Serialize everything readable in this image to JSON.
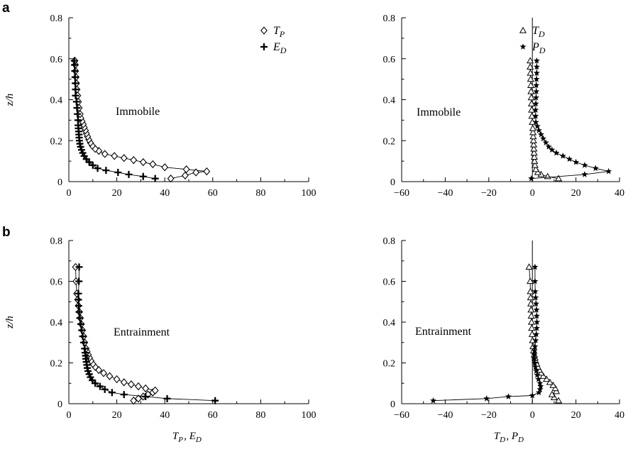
{
  "chart_data": [
    {
      "type": "line",
      "panel": "a",
      "annotation": "Immobile",
      "xlabel": "",
      "ylabel": "z/h",
      "xlim": [
        0,
        100
      ],
      "ylim": [
        0,
        0.8
      ],
      "xticks": [
        "0",
        "20",
        "40",
        "60",
        "80",
        "100"
      ],
      "yticks": [
        "0",
        "0.2",
        "0.4",
        "0.6",
        "0.8"
      ],
      "legend": "top-right",
      "series": [
        {
          "name": "T_P",
          "marker": "diamond",
          "points": [
            [
              42.5,
              0.015
            ],
            [
              48.5,
              0.03
            ],
            [
              53,
              0.045
            ],
            [
              57.5,
              0.05
            ],
            [
              49,
              0.06
            ],
            [
              40,
              0.07
            ],
            [
              35,
              0.085
            ],
            [
              31,
              0.095
            ],
            [
              27,
              0.105
            ],
            [
              23,
              0.115
            ],
            [
              19,
              0.125
            ],
            [
              15,
              0.135
            ],
            [
              12.5,
              0.15
            ],
            [
              11,
              0.16
            ],
            [
              9.8,
              0.175
            ],
            [
              9,
              0.19
            ],
            [
              8.3,
              0.205
            ],
            [
              7.8,
              0.22
            ],
            [
              7.3,
              0.235
            ],
            [
              6.9,
              0.25
            ],
            [
              6.4,
              0.265
            ],
            [
              6,
              0.28
            ],
            [
              5.5,
              0.295
            ],
            [
              5,
              0.31
            ],
            [
              4.7,
              0.33
            ],
            [
              4.3,
              0.36
            ],
            [
              4,
              0.39
            ],
            [
              3.7,
              0.42
            ],
            [
              3.4,
              0.45
            ],
            [
              3.2,
              0.48
            ],
            [
              3,
              0.51
            ],
            [
              2.8,
              0.54
            ],
            [
              2.7,
              0.57
            ],
            [
              2.5,
              0.59
            ]
          ]
        },
        {
          "name": "E_D",
          "marker": "plus",
          "points": [
            [
              36,
              0.015
            ],
            [
              31,
              0.025
            ],
            [
              25,
              0.035
            ],
            [
              20.5,
              0.045
            ],
            [
              15.5,
              0.055
            ],
            [
              12,
              0.065
            ],
            [
              10,
              0.08
            ],
            [
              8.5,
              0.095
            ],
            [
              7.3,
              0.11
            ],
            [
              6.4,
              0.125
            ],
            [
              5.8,
              0.14
            ],
            [
              5.3,
              0.155
            ],
            [
              4.9,
              0.17
            ],
            [
              4.6,
              0.185
            ],
            [
              4.4,
              0.2
            ],
            [
              4.3,
              0.215
            ],
            [
              4.2,
              0.23
            ],
            [
              4.1,
              0.245
            ],
            [
              4,
              0.26
            ],
            [
              3.9,
              0.275
            ],
            [
              3.8,
              0.3
            ],
            [
              3.6,
              0.33
            ],
            [
              3.4,
              0.36
            ],
            [
              3.2,
              0.39
            ],
            [
              2.8,
              0.42
            ],
            [
              2.8,
              0.45
            ],
            [
              2.7,
              0.48
            ],
            [
              2.6,
              0.51
            ],
            [
              2.5,
              0.54
            ],
            [
              2.4,
              0.57
            ],
            [
              2.3,
              0.59
            ]
          ]
        }
      ]
    },
    {
      "type": "line",
      "panel": "",
      "annotation": "Immobile",
      "xlabel": "",
      "ylabel": "",
      "xlim": [
        -60,
        40
      ],
      "ylim": [
        0,
        0.8
      ],
      "xticks": [
        "−60",
        "−40",
        "−20",
        "0",
        "20",
        "40"
      ],
      "yticks": [
        "0",
        "0.2",
        "0.4",
        "0.6",
        "0.8"
      ],
      "legend": "top-right",
      "series": [
        {
          "name": "T_D",
          "marker": "triangle",
          "points": [
            [
              12,
              0.015
            ],
            [
              7,
              0.025
            ],
            [
              4,
              0.035
            ],
            [
              2.5,
              0.045
            ],
            [
              1.6,
              0.06
            ],
            [
              1.2,
              0.08
            ],
            [
              1,
              0.1
            ],
            [
              0.9,
              0.12
            ],
            [
              0.8,
              0.14
            ],
            [
              0.7,
              0.16
            ],
            [
              0.6,
              0.18
            ],
            [
              0.5,
              0.2
            ],
            [
              0.4,
              0.22
            ],
            [
              0.3,
              0.24
            ],
            [
              0.2,
              0.26
            ],
            [
              0,
              0.29
            ],
            [
              -0.2,
              0.32
            ],
            [
              -0.3,
              0.35
            ],
            [
              -0.4,
              0.38
            ],
            [
              -0.5,
              0.41
            ],
            [
              -0.6,
              0.44
            ],
            [
              -0.7,
              0.47
            ],
            [
              -0.8,
              0.5
            ],
            [
              -0.9,
              0.53
            ],
            [
              -1,
              0.56
            ],
            [
              -1,
              0.59
            ]
          ]
        },
        {
          "name": "P_D",
          "marker": "star",
          "points": [
            [
              -0.5,
              0.015
            ],
            [
              24,
              0.035
            ],
            [
              35,
              0.05
            ],
            [
              29,
              0.065
            ],
            [
              24,
              0.08
            ],
            [
              20,
              0.095
            ],
            [
              17,
              0.11
            ],
            [
              14,
              0.125
            ],
            [
              11,
              0.14
            ],
            [
              9,
              0.155
            ],
            [
              7.5,
              0.17
            ],
            [
              6.2,
              0.19
            ],
            [
              5,
              0.21
            ],
            [
              4,
              0.23
            ],
            [
              3,
              0.25
            ],
            [
              2.3,
              0.27
            ],
            [
              1.6,
              0.29
            ],
            [
              1.5,
              0.32
            ],
            [
              1.5,
              0.35
            ],
            [
              1.6,
              0.38
            ],
            [
              1.7,
              0.41
            ],
            [
              1.8,
              0.44
            ],
            [
              1.8,
              0.47
            ],
            [
              1.9,
              0.5
            ],
            [
              2,
              0.53
            ],
            [
              2,
              0.56
            ],
            [
              2,
              0.59
            ]
          ]
        }
      ]
    },
    {
      "type": "line",
      "panel": "b",
      "annotation": "Entrainment",
      "xlabel": "T_P, E_D",
      "ylabel": "z/h",
      "xlim": [
        0,
        100
      ],
      "ylim": [
        0,
        0.8
      ],
      "xticks": [
        "0",
        "20",
        "40",
        "60",
        "80",
        "100"
      ],
      "yticks": [
        "0",
        "0.2",
        "0.4",
        "0.6",
        "0.8"
      ],
      "legend": "none",
      "series": [
        {
          "name": "T_P",
          "marker": "diamond",
          "points": [
            [
              27,
              0.015
            ],
            [
              29,
              0.025
            ],
            [
              31,
              0.035
            ],
            [
              33,
              0.045
            ],
            [
              35,
              0.055
            ],
            [
              36,
              0.065
            ],
            [
              32,
              0.075
            ],
            [
              29,
              0.085
            ],
            [
              26,
              0.095
            ],
            [
              23,
              0.105
            ],
            [
              20,
              0.12
            ],
            [
              17,
              0.135
            ],
            [
              14.5,
              0.15
            ],
            [
              12.5,
              0.165
            ],
            [
              11,
              0.18
            ],
            [
              10,
              0.195
            ],
            [
              9.2,
              0.21
            ],
            [
              8.6,
              0.225
            ],
            [
              8.1,
              0.24
            ],
            [
              7.6,
              0.255
            ],
            [
              7.2,
              0.27
            ],
            [
              6.6,
              0.3
            ],
            [
              6.2,
              0.33
            ],
            [
              5.7,
              0.36
            ],
            [
              5.2,
              0.39
            ],
            [
              4.8,
              0.42
            ],
            [
              4.4,
              0.45
            ],
            [
              4,
              0.48
            ],
            [
              3.7,
              0.51
            ],
            [
              3.3,
              0.54
            ],
            [
              3,
              0.6
            ],
            [
              2.8,
              0.67
            ]
          ]
        },
        {
          "name": "E_D",
          "marker": "plus",
          "points": [
            [
              61,
              0.015
            ],
            [
              41,
              0.025
            ],
            [
              32,
              0.035
            ],
            [
              23,
              0.045
            ],
            [
              18,
              0.055
            ],
            [
              15,
              0.07
            ],
            [
              13,
              0.085
            ],
            [
              11,
              0.1
            ],
            [
              9.8,
              0.115
            ],
            [
              9,
              0.13
            ],
            [
              8.5,
              0.145
            ],
            [
              8,
              0.16
            ],
            [
              7.7,
              0.175
            ],
            [
              7.5,
              0.19
            ],
            [
              7.3,
              0.205
            ],
            [
              7.1,
              0.22
            ],
            [
              7,
              0.235
            ],
            [
              6.8,
              0.25
            ],
            [
              6.6,
              0.27
            ],
            [
              6.2,
              0.3
            ],
            [
              5.8,
              0.33
            ],
            [
              5.4,
              0.36
            ],
            [
              5,
              0.39
            ],
            [
              4.6,
              0.42
            ],
            [
              4.3,
              0.45
            ],
            [
              4.1,
              0.48
            ],
            [
              4,
              0.51
            ],
            [
              4,
              0.54
            ],
            [
              4.2,
              0.6
            ],
            [
              4.3,
              0.67
            ]
          ]
        }
      ]
    },
    {
      "type": "line",
      "panel": "",
      "annotation": "Entrainment",
      "xlabel": "T_D, P_D",
      "ylabel": "",
      "xlim": [
        -60,
        40
      ],
      "ylim": [
        0,
        0.8
      ],
      "xticks": [
        "−60",
        "−40",
        "−20",
        "0",
        "20",
        "40"
      ],
      "yticks": [
        "0",
        "0.2",
        "0.4",
        "0.6",
        "0.8"
      ],
      "legend": "none",
      "series": [
        {
          "name": "T_D",
          "marker": "triangle",
          "points": [
            [
              12,
              0.015
            ],
            [
              10,
              0.03
            ],
            [
              9,
              0.045
            ],
            [
              11,
              0.06
            ],
            [
              10.5,
              0.075
            ],
            [
              9.5,
              0.09
            ],
            [
              8,
              0.105
            ],
            [
              6.5,
              0.12
            ],
            [
              5,
              0.135
            ],
            [
              4,
              0.15
            ],
            [
              3.2,
              0.165
            ],
            [
              2.5,
              0.18
            ],
            [
              2,
              0.195
            ],
            [
              1.5,
              0.21
            ],
            [
              1.2,
              0.225
            ],
            [
              0.9,
              0.24
            ],
            [
              0.6,
              0.26
            ],
            [
              0.3,
              0.28
            ],
            [
              0.1,
              0.31
            ],
            [
              -0.1,
              0.34
            ],
            [
              -0.3,
              0.37
            ],
            [
              -0.4,
              0.4
            ],
            [
              -0.5,
              0.43
            ],
            [
              -0.6,
              0.46
            ],
            [
              -0.7,
              0.49
            ],
            [
              -0.8,
              0.52
            ],
            [
              -0.9,
              0.55
            ],
            [
              -1,
              0.6
            ],
            [
              -1.5,
              0.67
            ]
          ]
        },
        {
          "name": "P_D",
          "marker": "star",
          "points": [
            [
              -45.5,
              0.015
            ],
            [
              -21,
              0.025
            ],
            [
              -11,
              0.035
            ],
            [
              0,
              0.04
            ],
            [
              3,
              0.055
            ],
            [
              3.5,
              0.07
            ],
            [
              3.8,
              0.085
            ],
            [
              3.5,
              0.1
            ],
            [
              2.8,
              0.12
            ],
            [
              2.2,
              0.14
            ],
            [
              1.8,
              0.16
            ],
            [
              1.4,
              0.18
            ],
            [
              1.1,
              0.2
            ],
            [
              0.9,
              0.22
            ],
            [
              0.9,
              0.24
            ],
            [
              1,
              0.26
            ],
            [
              1.2,
              0.28
            ],
            [
              1.5,
              0.31
            ],
            [
              1.8,
              0.34
            ],
            [
              2,
              0.37
            ],
            [
              2.1,
              0.4
            ],
            [
              2,
              0.43
            ],
            [
              1.9,
              0.46
            ],
            [
              1.7,
              0.49
            ],
            [
              1.5,
              0.52
            ],
            [
              1.3,
              0.55
            ],
            [
              1.2,
              0.6
            ],
            [
              1.2,
              0.67
            ]
          ]
        }
      ]
    }
  ]
}
